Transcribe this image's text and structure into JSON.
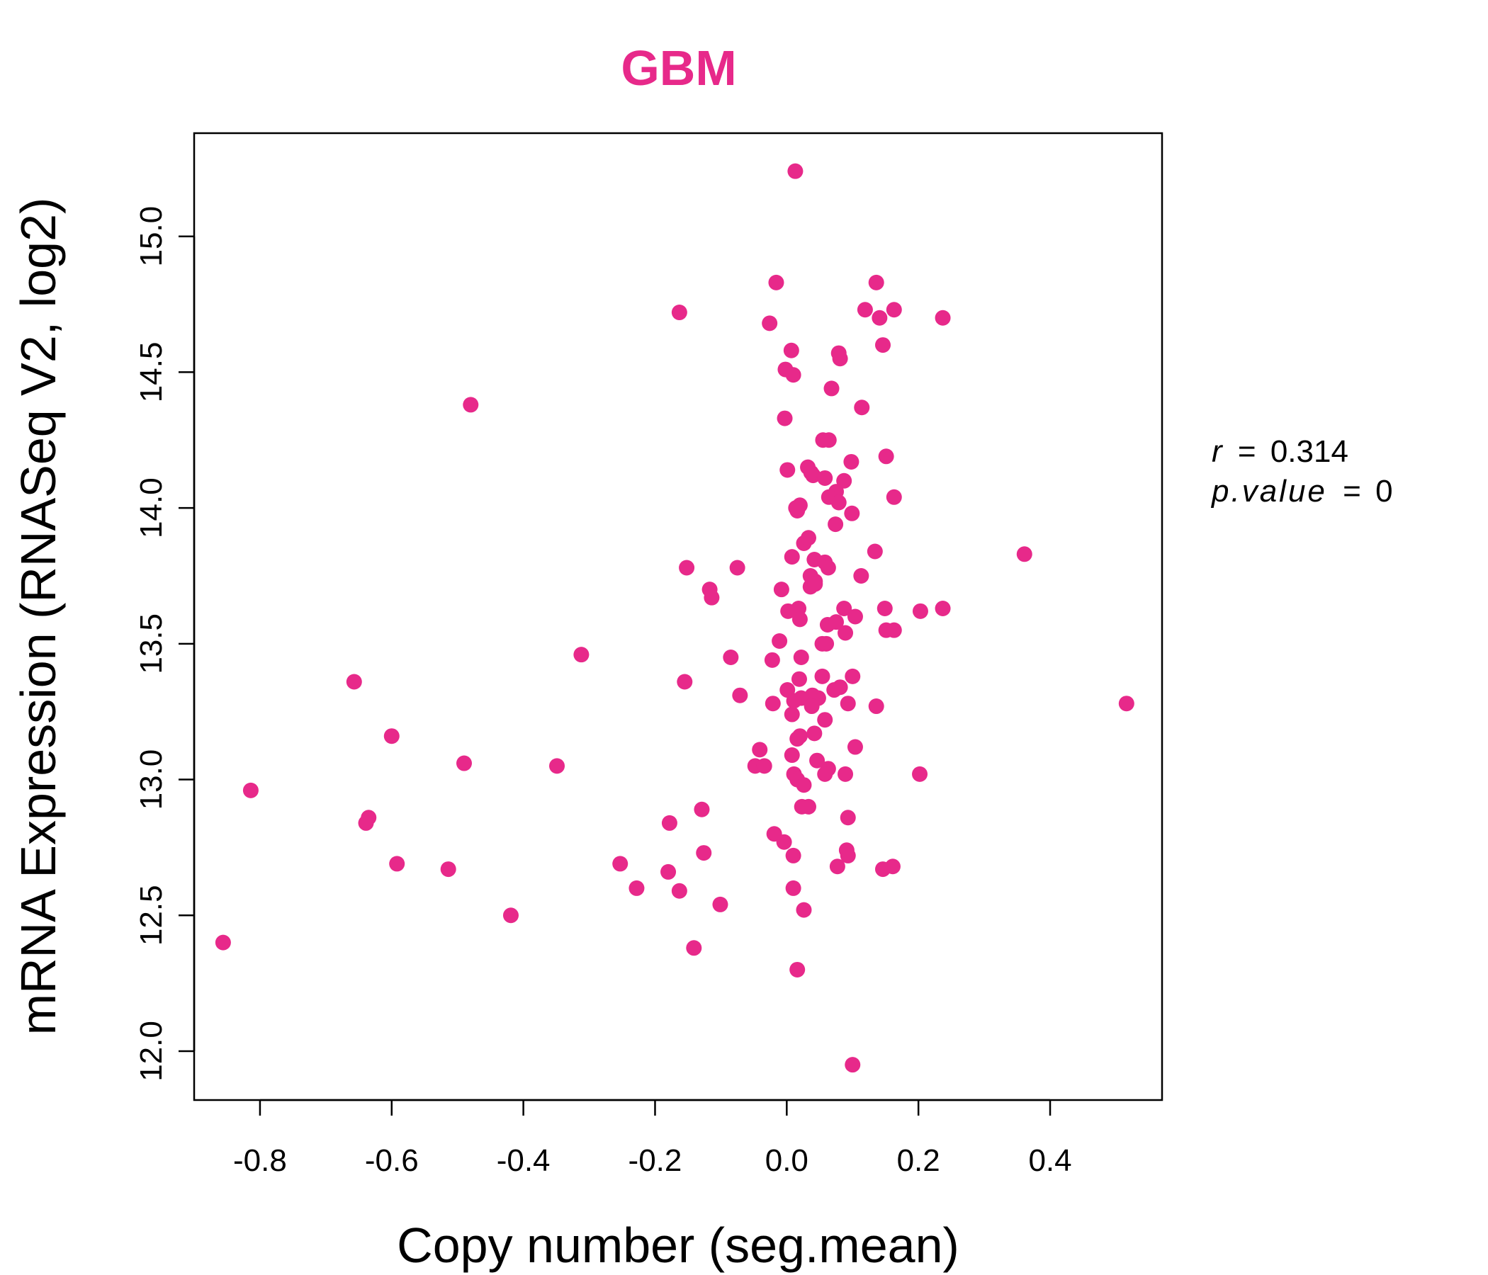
{
  "chart_data": {
    "type": "scatter",
    "title": "GBM",
    "xlabel": "Copy number (seg.mean)",
    "ylabel": "mRNA Expression (RNASeq V2, log2)",
    "xlim": [
      -0.9,
      0.57
    ],
    "ylim": [
      11.82,
      15.38
    ],
    "x_ticks": [
      "-0.8",
      "-0.6",
      "-0.4",
      "-0.2",
      "0.0",
      "0.2",
      "0.4"
    ],
    "y_ticks": [
      "12.0",
      "12.5",
      "13.0",
      "13.5",
      "14.0",
      "14.5",
      "15.0"
    ],
    "annotation": {
      "r_symbol": "r",
      "r_value": "0.314",
      "p_symbol": "p.value",
      "p_value": "0",
      "equals": "="
    },
    "colors": {
      "points": "#e7298a",
      "title": "#e7298a",
      "axis": "#000000"
    },
    "x": [
      0.013,
      -0.016,
      0.136,
      0.119,
      0.163,
      0.141,
      0.237,
      -0.163,
      -0.026,
      0.146,
      0.007,
      0.079,
      0.081,
      -0.002,
      0.01,
      0.068,
      0.114,
      -0.003,
      0.055,
      0.064,
      0.151,
      0.098,
      0.032,
      0.001,
      0.04,
      0.058,
      0.087,
      0.037,
      0.075,
      0.163,
      0.064,
      0.079,
      0.099,
      0.02,
      0.016,
      0.074,
      0.026,
      0.033,
      0.134,
      0.008,
      0.042,
      0.058,
      0.063,
      0.361,
      -0.152,
      -0.075,
      0.036,
      0.043,
      0.113,
      -0.117,
      -0.008,
      -0.114,
      0.036,
      0.043,
      0.018,
      0.149,
      0.087,
      0.237,
      0.203,
      0.002,
      0.104,
      0.02,
      0.062,
      0.075,
      0.151,
      0.163,
      0.054,
      0.06,
      0.089,
      -0.011,
      -0.312,
      -0.085,
      -0.022,
      0.022,
      -0.657,
      0.019,
      0.1,
      0.054,
      -0.155,
      0.072,
      -0.071,
      0.001,
      0.081,
      0.048,
      0.039,
      0.022,
      -0.021,
      0.093,
      0.038,
      0.136,
      0.008,
      0.516,
      0.058,
      0.011,
      0.02,
      0.042,
      0.016,
      0.104,
      -0.041,
      -0.6,
      0.008,
      -0.49,
      -0.048,
      0.046,
      -0.034,
      -0.349,
      0.063,
      0.202,
      0.058,
      0.011,
      0.089,
      0.016,
      0.026,
      -0.814,
      0.023,
      0.033,
      -0.129,
      -0.635,
      0.093,
      -0.639,
      -0.178,
      -0.019,
      -0.004,
      -0.126,
      0.091,
      0.01,
      0.093,
      -0.253,
      -0.592,
      0.161,
      0.146,
      0.077,
      -0.514,
      -0.18,
      -0.228,
      0.01,
      -0.163,
      -0.101,
      0.026,
      -0.419,
      -0.856,
      -0.141,
      0.016,
      0.1,
      0.014,
      -0.48
    ],
    "y": [
      15.24,
      14.83,
      14.83,
      14.73,
      14.73,
      14.7,
      14.7,
      14.72,
      14.68,
      14.6,
      14.58,
      14.57,
      14.55,
      14.51,
      14.49,
      14.44,
      14.37,
      14.33,
      14.25,
      14.25,
      14.19,
      14.17,
      14.15,
      14.14,
      14.12,
      14.11,
      14.1,
      14.13,
      14.06,
      14.04,
      14.04,
      14.02,
      13.98,
      14.01,
      13.99,
      13.94,
      13.87,
      13.89,
      13.84,
      13.82,
      13.81,
      13.8,
      13.78,
      13.83,
      13.78,
      13.78,
      13.75,
      13.73,
      13.75,
      13.7,
      13.7,
      13.67,
      13.71,
      13.72,
      13.63,
      13.63,
      13.63,
      13.63,
      13.62,
      13.62,
      13.6,
      13.59,
      13.57,
      13.58,
      13.55,
      13.55,
      13.5,
      13.5,
      13.54,
      13.51,
      13.46,
      13.45,
      13.44,
      13.45,
      13.36,
      13.37,
      13.38,
      13.38,
      13.36,
      13.33,
      13.31,
      13.33,
      13.34,
      13.3,
      13.31,
      13.3,
      13.28,
      13.28,
      13.27,
      13.27,
      13.24,
      13.28,
      13.22,
      13.29,
      13.16,
      13.17,
      13.15,
      13.12,
      13.11,
      13.16,
      13.09,
      13.06,
      13.05,
      13.07,
      13.05,
      13.05,
      13.04,
      13.02,
      13.02,
      13.02,
      13.02,
      13.0,
      12.98,
      12.96,
      12.9,
      12.9,
      12.89,
      12.86,
      12.86,
      12.84,
      12.84,
      12.8,
      12.77,
      12.73,
      12.74,
      12.72,
      12.72,
      12.69,
      12.69,
      12.68,
      12.67,
      12.68,
      12.67,
      12.66,
      12.6,
      12.6,
      12.59,
      12.54,
      12.52,
      12.5,
      12.4,
      12.38,
      12.3,
      11.95,
      14.0,
      14.38
    ]
  }
}
